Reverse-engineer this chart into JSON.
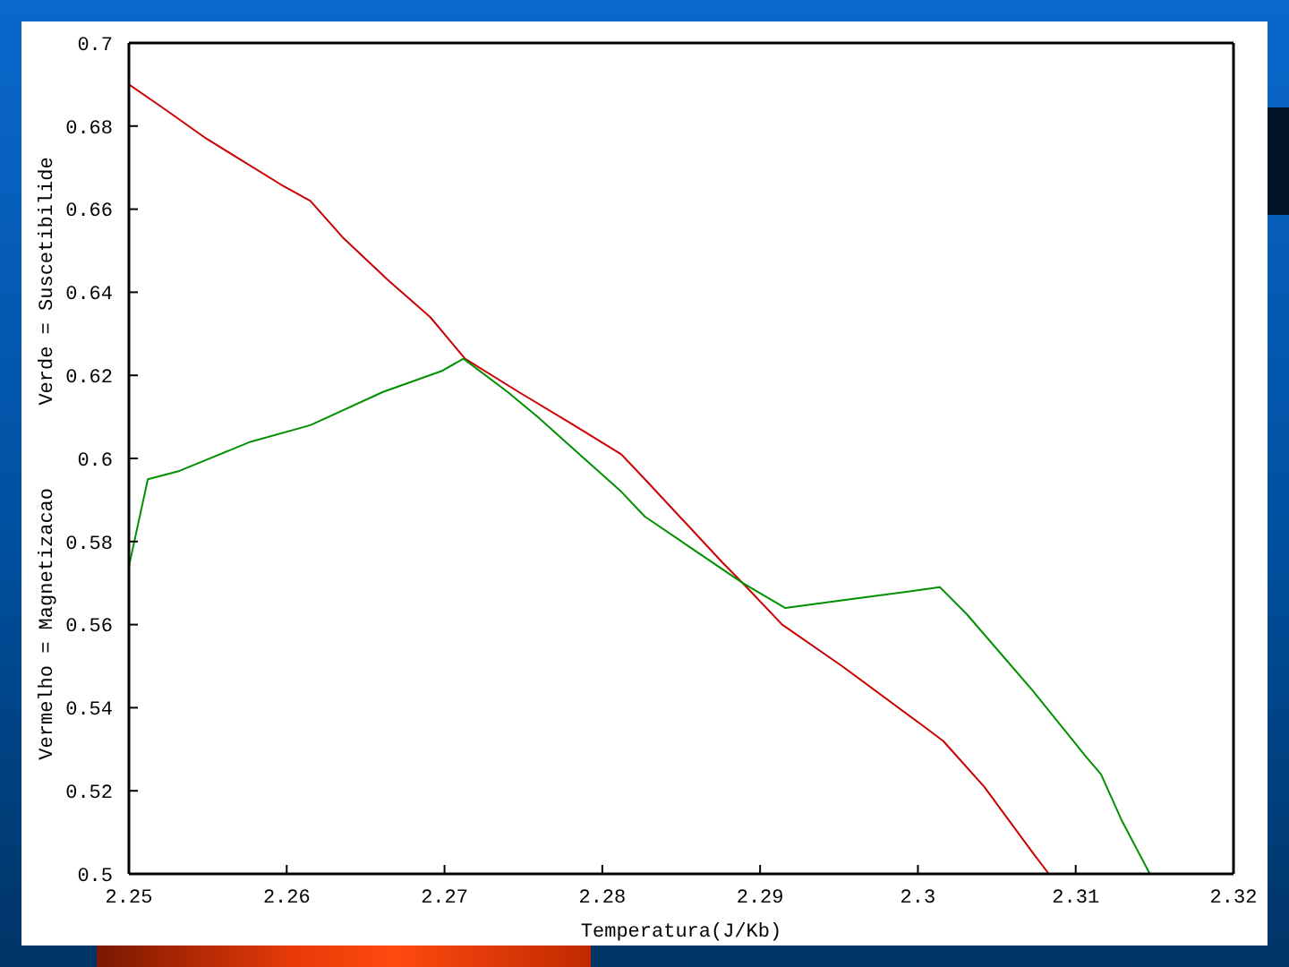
{
  "chart_data": {
    "type": "line",
    "xlabel": "Temperatura(J/Kb)",
    "ylabel": "Vermelho = Magnetizacao       Verde = Suscetibilide",
    "xlim": [
      2.25,
      2.32
    ],
    "xticks": [
      2.25,
      2.26,
      2.27,
      2.28,
      2.29,
      2.3,
      2.31,
      2.32
    ],
    "ylim": [
      0.5,
      0.7
    ],
    "yticks": [
      0.5,
      0.52,
      0.54,
      0.56,
      0.58,
      0.6,
      0.62,
      0.64,
      0.66,
      0.68,
      0.7
    ],
    "series": [
      {
        "color": "#cc0000",
        "x": [
          2.25,
          2.2523,
          2.2549,
          2.2596,
          2.2615,
          2.2636,
          2.2664,
          2.2691,
          2.2713,
          2.2747,
          2.2782,
          2.2812,
          2.2827,
          2.2876,
          2.2889,
          2.2914,
          2.2952,
          2.3002,
          2.3016,
          2.3042,
          2.3073,
          2.3083
        ],
        "values": [
          0.69,
          0.684,
          0.677,
          0.666,
          0.662,
          0.653,
          0.643,
          0.634,
          0.624,
          0.616,
          0.608,
          0.601,
          0.595,
          0.575,
          0.57,
          0.56,
          0.55,
          0.536,
          0.532,
          0.521,
          0.505,
          0.5
        ]
      },
      {
        "color": "#009000",
        "x": [
          2.25,
          2.2512,
          2.2532,
          2.2577,
          2.2615,
          2.2661,
          2.2698,
          2.2712,
          2.274,
          2.2759,
          2.2812,
          2.2827,
          2.2889,
          2.2916,
          2.2955,
          2.3014,
          2.3031,
          2.3073,
          2.3107,
          2.3116,
          2.3129,
          2.3147
        ],
        "values": [
          0.574,
          0.595,
          0.597,
          0.604,
          0.608,
          0.616,
          0.621,
          0.624,
          0.616,
          0.61,
          0.592,
          0.586,
          0.57,
          0.564,
          0.566,
          0.569,
          0.5625,
          0.544,
          0.528,
          0.524,
          0.513,
          0.5
        ]
      }
    ]
  }
}
